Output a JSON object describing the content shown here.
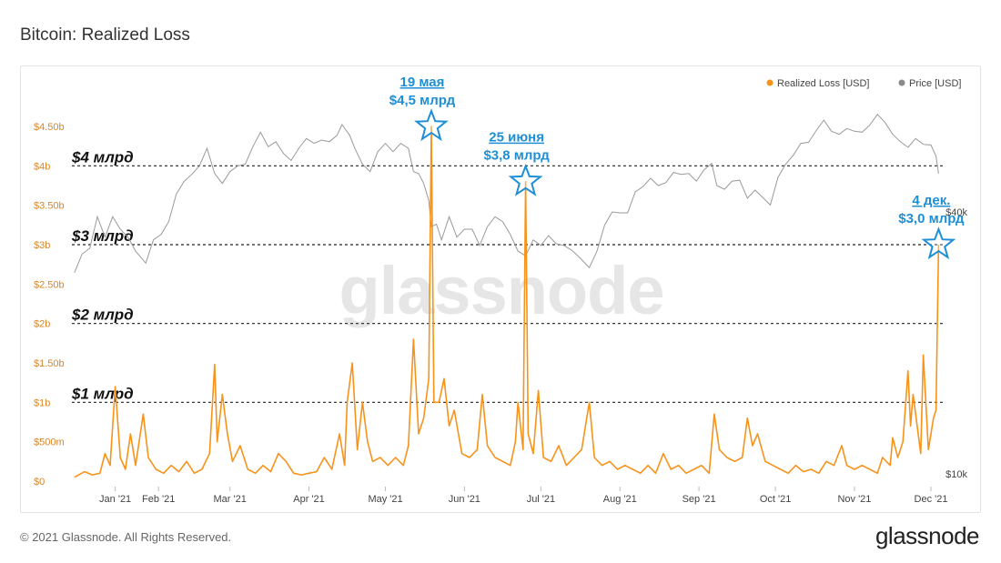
{
  "title": "Bitcoin: Realized Loss",
  "footer": {
    "copyright": "© 2021 Glassnode. All Rights Reserved.",
    "brand": "glassnode"
  },
  "watermark": "glassnode",
  "colors": {
    "loss": "#f7931a",
    "price": "#9a9a9a",
    "annotation": "#1e8fd6",
    "loss_axis": "#d9862a"
  },
  "chart_data": {
    "type": "line",
    "legend": [
      {
        "name": "Realized Loss [USD]",
        "color": "#f7931a"
      },
      {
        "name": "Price [USD]",
        "color": "#8a8a8a"
      }
    ],
    "legend_position": "top-right",
    "x_labels": [
      "Jan '21",
      "Feb '21",
      "Mar '21",
      "Apr '21",
      "May '21",
      "Jun '21",
      "Jul '21",
      "Aug '21",
      "Sep '21",
      "Oct '21",
      "Nov '21",
      "Dec '21"
    ],
    "x_tick_dates": [
      "2021-01-15",
      "2021-02-01",
      "2021-03-01",
      "2021-04-01",
      "2021-05-01",
      "2021-06-01",
      "2021-07-01",
      "2021-08-01",
      "2021-09-01",
      "2021-10-01",
      "2021-11-01",
      "2021-12-01"
    ],
    "y_left_ticks": [
      "$0",
      "$500m",
      "$1b",
      "$1.50b",
      "$2b",
      "$2.50b",
      "$3b",
      "$3.50b",
      "$4b",
      "$4.50b"
    ],
    "y_left_range": [
      0,
      4.5
    ],
    "y_left_unit": "billion USD",
    "y_right_ticks": [
      "$10k",
      "$40k"
    ],
    "y_right_scale": "log",
    "reference_lines": [
      {
        "value": 4,
        "label": "$4 млрд"
      },
      {
        "value": 3,
        "label": "$3 млрд"
      },
      {
        "value": 2,
        "label": "$2 млрд"
      },
      {
        "value": 1,
        "label": "$1 млрд"
      }
    ],
    "annotations": [
      {
        "date": "2021-05-19",
        "date_label": "19 мая",
        "value_label": "$4,5 млрд",
        "value": 4.5
      },
      {
        "date": "2021-06-25",
        "date_label": "25 июня",
        "value_label": "$3,8 млрд",
        "value": 3.8
      },
      {
        "date": "2021-12-04",
        "date_label": "4 дек.",
        "value_label": "$3,0 млрд",
        "value": 3.0
      }
    ],
    "series": [
      {
        "name": "Realized Loss [USD]",
        "unit": "billion USD",
        "points": [
          [
            "2020-12-30",
            0.05
          ],
          [
            "2021-01-03",
            0.12
          ],
          [
            "2021-01-06",
            0.08
          ],
          [
            "2021-01-09",
            0.1
          ],
          [
            "2021-01-11",
            0.35
          ],
          [
            "2021-01-13",
            0.2
          ],
          [
            "2021-01-15",
            1.2
          ],
          [
            "2021-01-17",
            0.3
          ],
          [
            "2021-01-19",
            0.15
          ],
          [
            "2021-01-21",
            0.6
          ],
          [
            "2021-01-23",
            0.2
          ],
          [
            "2021-01-26",
            0.85
          ],
          [
            "2021-01-28",
            0.3
          ],
          [
            "2021-01-31",
            0.15
          ],
          [
            "2021-02-03",
            0.1
          ],
          [
            "2021-02-06",
            0.2
          ],
          [
            "2021-02-09",
            0.12
          ],
          [
            "2021-02-12",
            0.25
          ],
          [
            "2021-02-15",
            0.1
          ],
          [
            "2021-02-18",
            0.15
          ],
          [
            "2021-02-21",
            0.35
          ],
          [
            "2021-02-23",
            1.48
          ],
          [
            "2021-02-24",
            0.5
          ],
          [
            "2021-02-26",
            1.1
          ],
          [
            "2021-02-28",
            0.6
          ],
          [
            "2021-03-02",
            0.25
          ],
          [
            "2021-03-05",
            0.45
          ],
          [
            "2021-03-08",
            0.15
          ],
          [
            "2021-03-11",
            0.1
          ],
          [
            "2021-03-14",
            0.2
          ],
          [
            "2021-03-17",
            0.12
          ],
          [
            "2021-03-20",
            0.35
          ],
          [
            "2021-03-23",
            0.25
          ],
          [
            "2021-03-26",
            0.1
          ],
          [
            "2021-03-29",
            0.08
          ],
          [
            "2021-04-01",
            0.1
          ],
          [
            "2021-04-04",
            0.12
          ],
          [
            "2021-04-07",
            0.3
          ],
          [
            "2021-04-10",
            0.15
          ],
          [
            "2021-04-13",
            0.6
          ],
          [
            "2021-04-15",
            0.2
          ],
          [
            "2021-04-16",
            1.0
          ],
          [
            "2021-04-18",
            1.5
          ],
          [
            "2021-04-20",
            0.4
          ],
          [
            "2021-04-22",
            1.0
          ],
          [
            "2021-04-24",
            0.5
          ],
          [
            "2021-04-26",
            0.25
          ],
          [
            "2021-04-29",
            0.3
          ],
          [
            "2021-05-02",
            0.2
          ],
          [
            "2021-05-05",
            0.3
          ],
          [
            "2021-05-08",
            0.2
          ],
          [
            "2021-05-10",
            0.45
          ],
          [
            "2021-05-12",
            1.8
          ],
          [
            "2021-05-14",
            0.6
          ],
          [
            "2021-05-16",
            0.8
          ],
          [
            "2021-05-18",
            1.3
          ],
          [
            "2021-05-19",
            4.5
          ],
          [
            "2021-05-20",
            1.0
          ],
          [
            "2021-05-22",
            1.0
          ],
          [
            "2021-05-24",
            1.3
          ],
          [
            "2021-05-26",
            0.7
          ],
          [
            "2021-05-28",
            0.9
          ],
          [
            "2021-05-31",
            0.35
          ],
          [
            "2021-06-03",
            0.3
          ],
          [
            "2021-06-06",
            0.4
          ],
          [
            "2021-06-08",
            1.1
          ],
          [
            "2021-06-10",
            0.45
          ],
          [
            "2021-06-13",
            0.3
          ],
          [
            "2021-06-16",
            0.25
          ],
          [
            "2021-06-19",
            0.2
          ],
          [
            "2021-06-21",
            0.5
          ],
          [
            "2021-06-22",
            1.0
          ],
          [
            "2021-06-24",
            0.4
          ],
          [
            "2021-06-25",
            3.8
          ],
          [
            "2021-06-26",
            0.6
          ],
          [
            "2021-06-28",
            0.35
          ],
          [
            "2021-06-30",
            1.15
          ],
          [
            "2021-07-02",
            0.3
          ],
          [
            "2021-07-05",
            0.25
          ],
          [
            "2021-07-08",
            0.45
          ],
          [
            "2021-07-11",
            0.2
          ],
          [
            "2021-07-14",
            0.3
          ],
          [
            "2021-07-17",
            0.4
          ],
          [
            "2021-07-20",
            1.0
          ],
          [
            "2021-07-22",
            0.3
          ],
          [
            "2021-07-25",
            0.2
          ],
          [
            "2021-07-28",
            0.25
          ],
          [
            "2021-07-31",
            0.15
          ],
          [
            "2021-08-03",
            0.2
          ],
          [
            "2021-08-06",
            0.15
          ],
          [
            "2021-08-09",
            0.1
          ],
          [
            "2021-08-12",
            0.2
          ],
          [
            "2021-08-15",
            0.1
          ],
          [
            "2021-08-18",
            0.35
          ],
          [
            "2021-08-21",
            0.15
          ],
          [
            "2021-08-24",
            0.2
          ],
          [
            "2021-08-27",
            0.1
          ],
          [
            "2021-08-30",
            0.15
          ],
          [
            "2021-09-02",
            0.2
          ],
          [
            "2021-09-05",
            0.1
          ],
          [
            "2021-09-07",
            0.85
          ],
          [
            "2021-09-09",
            0.4
          ],
          [
            "2021-09-12",
            0.3
          ],
          [
            "2021-09-15",
            0.25
          ],
          [
            "2021-09-18",
            0.3
          ],
          [
            "2021-09-20",
            0.8
          ],
          [
            "2021-09-22",
            0.45
          ],
          [
            "2021-09-24",
            0.6
          ],
          [
            "2021-09-27",
            0.25
          ],
          [
            "2021-09-30",
            0.2
          ],
          [
            "2021-10-03",
            0.15
          ],
          [
            "2021-10-06",
            0.1
          ],
          [
            "2021-10-09",
            0.2
          ],
          [
            "2021-10-12",
            0.12
          ],
          [
            "2021-10-15",
            0.15
          ],
          [
            "2021-10-18",
            0.1
          ],
          [
            "2021-10-21",
            0.25
          ],
          [
            "2021-10-24",
            0.2
          ],
          [
            "2021-10-27",
            0.45
          ],
          [
            "2021-10-29",
            0.2
          ],
          [
            "2021-11-01",
            0.15
          ],
          [
            "2021-11-04",
            0.2
          ],
          [
            "2021-11-07",
            0.15
          ],
          [
            "2021-11-10",
            0.1
          ],
          [
            "2021-11-12",
            0.3
          ],
          [
            "2021-11-15",
            0.2
          ],
          [
            "2021-11-16",
            0.55
          ],
          [
            "2021-11-18",
            0.3
          ],
          [
            "2021-11-20",
            0.5
          ],
          [
            "2021-11-22",
            1.4
          ],
          [
            "2021-11-23",
            0.7
          ],
          [
            "2021-11-24",
            1.1
          ],
          [
            "2021-11-26",
            0.6
          ],
          [
            "2021-11-27",
            0.35
          ],
          [
            "2021-11-28",
            1.6
          ],
          [
            "2021-11-30",
            0.4
          ],
          [
            "2021-12-02",
            0.8
          ],
          [
            "2021-12-03",
            0.9
          ],
          [
            "2021-12-04",
            3.0
          ]
        ]
      },
      {
        "name": "Price [USD]",
        "unit": "USD",
        "points": [
          [
            "2020-12-30",
            29000
          ],
          [
            "2021-01-02",
            32000
          ],
          [
            "2021-01-05",
            33000
          ],
          [
            "2021-01-08",
            39000
          ],
          [
            "2021-01-11",
            35000
          ],
          [
            "2021-01-14",
            39000
          ],
          [
            "2021-01-17",
            36500
          ],
          [
            "2021-01-20",
            35000
          ],
          [
            "2021-01-23",
            32500
          ],
          [
            "2021-01-27",
            30500
          ],
          [
            "2021-01-30",
            34500
          ],
          [
            "2021-02-02",
            35500
          ],
          [
            "2021-02-05",
            38000
          ],
          [
            "2021-02-08",
            44000
          ],
          [
            "2021-02-11",
            47000
          ],
          [
            "2021-02-14",
            48800
          ],
          [
            "2021-02-17",
            51000
          ],
          [
            "2021-02-20",
            56000
          ],
          [
            "2021-02-23",
            49000
          ],
          [
            "2021-02-26",
            46500
          ],
          [
            "2021-03-01",
            49500
          ],
          [
            "2021-03-04",
            51000
          ],
          [
            "2021-03-07",
            51500
          ],
          [
            "2021-03-10",
            56500
          ],
          [
            "2021-03-13",
            61000
          ],
          [
            "2021-03-16",
            56500
          ],
          [
            "2021-03-19",
            58000
          ],
          [
            "2021-03-22",
            54500
          ],
          [
            "2021-03-25",
            52500
          ],
          [
            "2021-03-28",
            56000
          ],
          [
            "2021-03-31",
            59000
          ],
          [
            "2021-04-03",
            57500
          ],
          [
            "2021-04-06",
            58500
          ],
          [
            "2021-04-09",
            58000
          ],
          [
            "2021-04-12",
            60000
          ],
          [
            "2021-04-14",
            63500
          ],
          [
            "2021-04-17",
            60000
          ],
          [
            "2021-04-19",
            56000
          ],
          [
            "2021-04-22",
            51500
          ],
          [
            "2021-04-25",
            49500
          ],
          [
            "2021-04-28",
            55000
          ],
          [
            "2021-05-01",
            57500
          ],
          [
            "2021-05-04",
            55000
          ],
          [
            "2021-05-07",
            57500
          ],
          [
            "2021-05-10",
            56000
          ],
          [
            "2021-05-12",
            49500
          ],
          [
            "2021-05-14",
            49000
          ],
          [
            "2021-05-16",
            46500
          ],
          [
            "2021-05-18",
            42500
          ],
          [
            "2021-05-19",
            37000
          ],
          [
            "2021-05-21",
            37500
          ],
          [
            "2021-05-23",
            34500
          ],
          [
            "2021-05-26",
            39000
          ],
          [
            "2021-05-29",
            35000
          ],
          [
            "2021-06-01",
            36500
          ],
          [
            "2021-06-04",
            36500
          ],
          [
            "2021-06-07",
            33500
          ],
          [
            "2021-06-10",
            37000
          ],
          [
            "2021-06-13",
            39000
          ],
          [
            "2021-06-16",
            38000
          ],
          [
            "2021-06-19",
            35500
          ],
          [
            "2021-06-22",
            32500
          ],
          [
            "2021-06-25",
            31700
          ],
          [
            "2021-06-28",
            34500
          ],
          [
            "2021-07-01",
            33500
          ],
          [
            "2021-07-04",
            35300
          ],
          [
            "2021-07-07",
            33800
          ],
          [
            "2021-07-10",
            33500
          ],
          [
            "2021-07-13",
            32700
          ],
          [
            "2021-07-16",
            31500
          ],
          [
            "2021-07-20",
            29800
          ],
          [
            "2021-07-23",
            32500
          ],
          [
            "2021-07-26",
            37300
          ],
          [
            "2021-07-29",
            40000
          ],
          [
            "2021-08-01",
            39800
          ],
          [
            "2021-08-04",
            39800
          ],
          [
            "2021-08-07",
            44500
          ],
          [
            "2021-08-10",
            45700
          ],
          [
            "2021-08-13",
            47800
          ],
          [
            "2021-08-16",
            46000
          ],
          [
            "2021-08-19",
            46700
          ],
          [
            "2021-08-22",
            49300
          ],
          [
            "2021-08-25",
            48800
          ],
          [
            "2021-08-28",
            49000
          ],
          [
            "2021-08-31",
            47100
          ],
          [
            "2021-09-03",
            50000
          ],
          [
            "2021-09-06",
            51700
          ],
          [
            "2021-09-08",
            46000
          ],
          [
            "2021-09-11",
            45100
          ],
          [
            "2021-09-14",
            47100
          ],
          [
            "2021-09-17",
            47300
          ],
          [
            "2021-09-20",
            43000
          ],
          [
            "2021-09-23",
            44900
          ],
          [
            "2021-09-26",
            43200
          ],
          [
            "2021-09-29",
            41500
          ],
          [
            "2021-10-02",
            48000
          ],
          [
            "2021-10-05",
            51500
          ],
          [
            "2021-10-08",
            54000
          ],
          [
            "2021-10-11",
            57500
          ],
          [
            "2021-10-14",
            57800
          ],
          [
            "2021-10-17",
            61500
          ],
          [
            "2021-10-20",
            65000
          ],
          [
            "2021-10-23",
            61300
          ],
          [
            "2021-10-26",
            60300
          ],
          [
            "2021-10-29",
            62200
          ],
          [
            "2021-11-01",
            61300
          ],
          [
            "2021-11-04",
            61000
          ],
          [
            "2021-11-07",
            63300
          ],
          [
            "2021-11-10",
            67000
          ],
          [
            "2021-11-13",
            64200
          ],
          [
            "2021-11-16",
            60300
          ],
          [
            "2021-11-19",
            58000
          ],
          [
            "2021-11-22",
            56300
          ],
          [
            "2021-11-25",
            59000
          ],
          [
            "2021-11-28",
            57200
          ],
          [
            "2021-12-01",
            57000
          ],
          [
            "2021-12-03",
            53700
          ],
          [
            "2021-12-04",
            49000
          ]
        ]
      }
    ]
  }
}
